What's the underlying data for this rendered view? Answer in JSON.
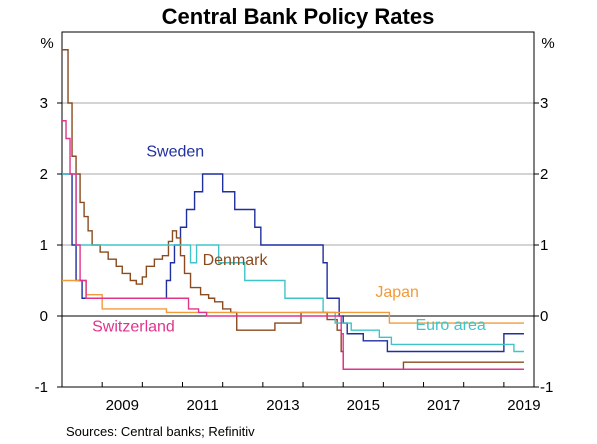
{
  "chart_data": {
    "type": "line",
    "title": "Central Bank Policy Rates",
    "ylabel_left": "%",
    "ylabel_right": "%",
    "ylim": [
      -1,
      4
    ],
    "xlim": [
      2008.0,
      2019.75
    ],
    "yticks": [
      -1,
      0,
      1,
      2,
      3
    ],
    "xticks": [
      2009,
      2011,
      2013,
      2015,
      2017,
      2019
    ],
    "xtick_labels": [
      "2009",
      "2011",
      "2013",
      "2015",
      "2017",
      "2019"
    ],
    "grid": true,
    "source": "Sources:   Central banks; Refinitiv",
    "series": [
      {
        "name": "Sweden",
        "color": "#1f2fa0",
        "points": [
          [
            2008.0,
            2.0
          ],
          [
            2008.15,
            2.0
          ],
          [
            2008.25,
            1.0
          ],
          [
            2008.35,
            0.5
          ],
          [
            2008.5,
            0.25
          ],
          [
            2010.5,
            0.25
          ],
          [
            2010.6,
            0.5
          ],
          [
            2010.7,
            0.75
          ],
          [
            2010.8,
            1.0
          ],
          [
            2010.95,
            1.25
          ],
          [
            2011.1,
            1.5
          ],
          [
            2011.3,
            1.75
          ],
          [
            2011.5,
            2.0
          ],
          [
            2011.95,
            2.0
          ],
          [
            2012.0,
            1.75
          ],
          [
            2012.3,
            1.5
          ],
          [
            2012.8,
            1.25
          ],
          [
            2012.95,
            1.0
          ],
          [
            2013.95,
            1.0
          ],
          [
            2014.5,
            0.75
          ],
          [
            2014.6,
            0.25
          ],
          [
            2014.9,
            0.0
          ],
          [
            2015.0,
            -0.1
          ],
          [
            2015.1,
            -0.25
          ],
          [
            2015.5,
            -0.35
          ],
          [
            2016.1,
            -0.5
          ],
          [
            2018.95,
            -0.5
          ],
          [
            2019.0,
            -0.25
          ],
          [
            2019.5,
            -0.25
          ]
        ]
      },
      {
        "name": "Denmark",
        "color": "#8b4a1f",
        "points": [
          [
            2008.0,
            3.75
          ],
          [
            2008.1,
            3.75
          ],
          [
            2008.15,
            3.0
          ],
          [
            2008.25,
            2.25
          ],
          [
            2008.35,
            2.0
          ],
          [
            2008.45,
            1.6
          ],
          [
            2008.55,
            1.4
          ],
          [
            2008.65,
            1.2
          ],
          [
            2008.75,
            1.0
          ],
          [
            2008.95,
            0.9
          ],
          [
            2009.15,
            0.8
          ],
          [
            2009.35,
            0.7
          ],
          [
            2009.5,
            0.6
          ],
          [
            2009.7,
            0.5
          ],
          [
            2009.85,
            0.45
          ],
          [
            2010.0,
            0.55
          ],
          [
            2010.1,
            0.7
          ],
          [
            2010.3,
            0.8
          ],
          [
            2010.5,
            0.85
          ],
          [
            2010.65,
            1.05
          ],
          [
            2010.75,
            1.2
          ],
          [
            2010.85,
            1.1
          ],
          [
            2010.95,
            0.85
          ],
          [
            2011.05,
            0.6
          ],
          [
            2011.2,
            0.4
          ],
          [
            2011.45,
            0.3
          ],
          [
            2011.65,
            0.25
          ],
          [
            2011.8,
            0.2
          ],
          [
            2012.0,
            0.1
          ],
          [
            2012.2,
            0.05
          ],
          [
            2012.35,
            -0.2
          ],
          [
            2013.0,
            -0.2
          ],
          [
            2013.3,
            -0.1
          ],
          [
            2013.95,
            0.05
          ],
          [
            2014.5,
            0.05
          ],
          [
            2014.6,
            -0.05
          ],
          [
            2014.85,
            -0.2
          ],
          [
            2014.95,
            -0.5
          ],
          [
            2015.0,
            -0.75
          ],
          [
            2016.5,
            -0.65
          ],
          [
            2019.5,
            -0.65
          ]
        ]
      },
      {
        "name": "Euro area",
        "color": "#3fc5c8",
        "points": [
          [
            2008.0,
            2.0
          ],
          [
            2008.2,
            2.0
          ],
          [
            2008.35,
            1.0
          ],
          [
            2011.0,
            1.0
          ],
          [
            2011.2,
            0.75
          ],
          [
            2011.35,
            1.0
          ],
          [
            2011.85,
            1.0
          ],
          [
            2011.9,
            0.75
          ],
          [
            2012.5,
            0.75
          ],
          [
            2012.55,
            0.5
          ],
          [
            2013.5,
            0.5
          ],
          [
            2013.55,
            0.25
          ],
          [
            2014.45,
            0.25
          ],
          [
            2014.5,
            0.05
          ],
          [
            2014.75,
            0.05
          ],
          [
            2014.8,
            -0.1
          ],
          [
            2015.2,
            -0.2
          ],
          [
            2015.9,
            -0.3
          ],
          [
            2016.2,
            -0.4
          ],
          [
            2019.2,
            -0.4
          ],
          [
            2019.25,
            -0.5
          ],
          [
            2019.5,
            -0.5
          ]
        ]
      },
      {
        "name": "Japan",
        "color": "#f29a3a",
        "points": [
          [
            2008.0,
            0.5
          ],
          [
            2008.5,
            0.5
          ],
          [
            2008.6,
            0.3
          ],
          [
            2009.0,
            0.1
          ],
          [
            2010.5,
            0.1
          ],
          [
            2010.6,
            0.05
          ],
          [
            2014.5,
            0.05
          ],
          [
            2016.1,
            0.05
          ],
          [
            2016.15,
            -0.1
          ],
          [
            2019.5,
            -0.1
          ]
        ]
      },
      {
        "name": "Switzerland",
        "color": "#e0338d",
        "points": [
          [
            2008.0,
            2.75
          ],
          [
            2008.1,
            2.5
          ],
          [
            2008.2,
            2.0
          ],
          [
            2008.35,
            1.0
          ],
          [
            2008.45,
            0.5
          ],
          [
            2008.6,
            0.25
          ],
          [
            2011.0,
            0.25
          ],
          [
            2011.15,
            0.1
          ],
          [
            2011.4,
            0.05
          ],
          [
            2011.6,
            0.0
          ],
          [
            2014.9,
            0.0
          ],
          [
            2014.95,
            -0.25
          ],
          [
            2015.0,
            -0.75
          ],
          [
            2019.5,
            -0.75
          ]
        ]
      }
    ],
    "labels": [
      {
        "text": "Sweden",
        "color": "#1f2fa0",
        "x": 2010.1,
        "y": 2.25
      },
      {
        "text": "Denmark",
        "color": "#8b4a1f",
        "x": 2011.5,
        "y": 0.72
      },
      {
        "text": "Japan",
        "color": "#f29a3a",
        "x": 2015.8,
        "y": 0.27
      },
      {
        "text": "Euro area",
        "color": "#3fc5c8",
        "x": 2016.8,
        "y": -0.2
      },
      {
        "text": "Switzerland",
        "color": "#e0338d",
        "x": 2008.75,
        "y": -0.22
      }
    ]
  }
}
